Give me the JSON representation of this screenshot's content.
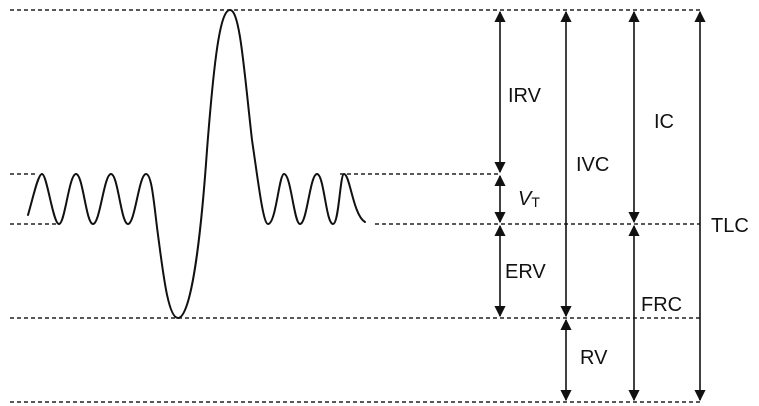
{
  "diagram": {
    "labels": {
      "irv": "IRV",
      "vt_main": "V",
      "vt_sub": "T",
      "erv": "ERV",
      "rv": "RV",
      "ivc": "IVC",
      "ic": "IC",
      "frc": "FRC",
      "tlc": "TLC"
    },
    "colors": {
      "line": "#111111",
      "background": "#ffffff"
    }
  }
}
